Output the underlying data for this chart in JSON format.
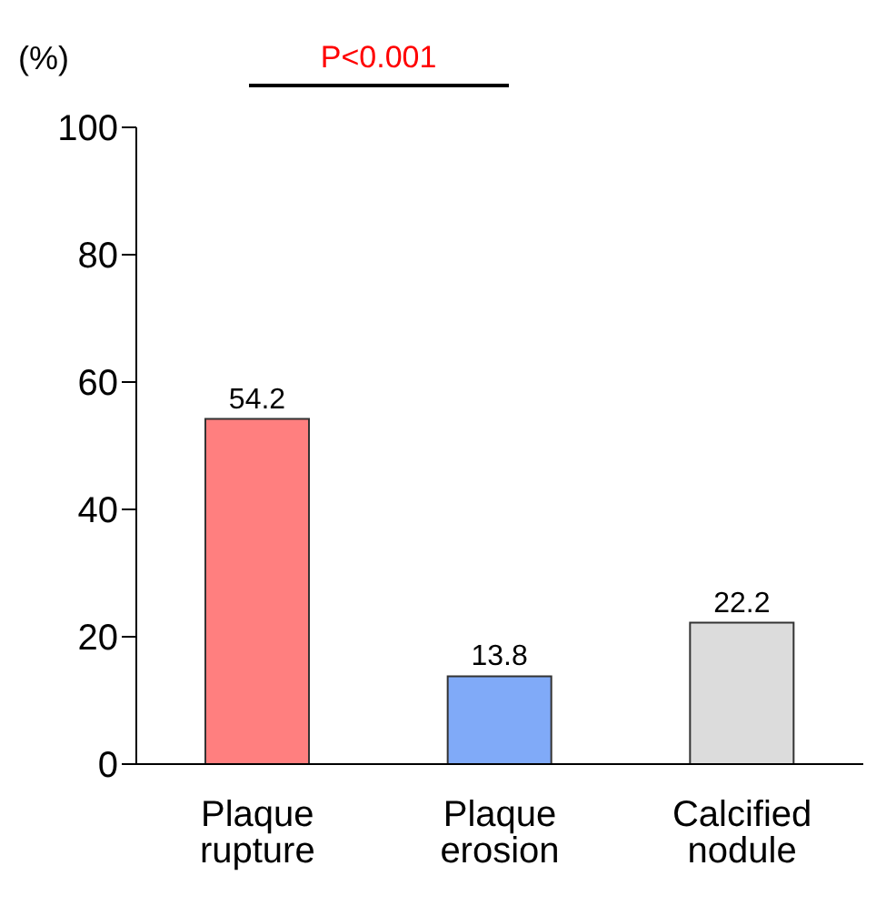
{
  "chart_data": {
    "type": "bar",
    "ylabel": "(%)",
    "categories": [
      "Plaque rupture",
      "Plaque erosion",
      "Calcified nodule"
    ],
    "values": [
      54.2,
      13.8,
      22.2
    ],
    "colors": [
      "#ff7f7f",
      "#80aaf8",
      "#dcdcdc"
    ],
    "ylim": [
      0,
      100
    ],
    "yticks": [
      0,
      20,
      40,
      60,
      80,
      100
    ],
    "data_labels": true,
    "annotations": [
      "P<0.001"
    ]
  }
}
